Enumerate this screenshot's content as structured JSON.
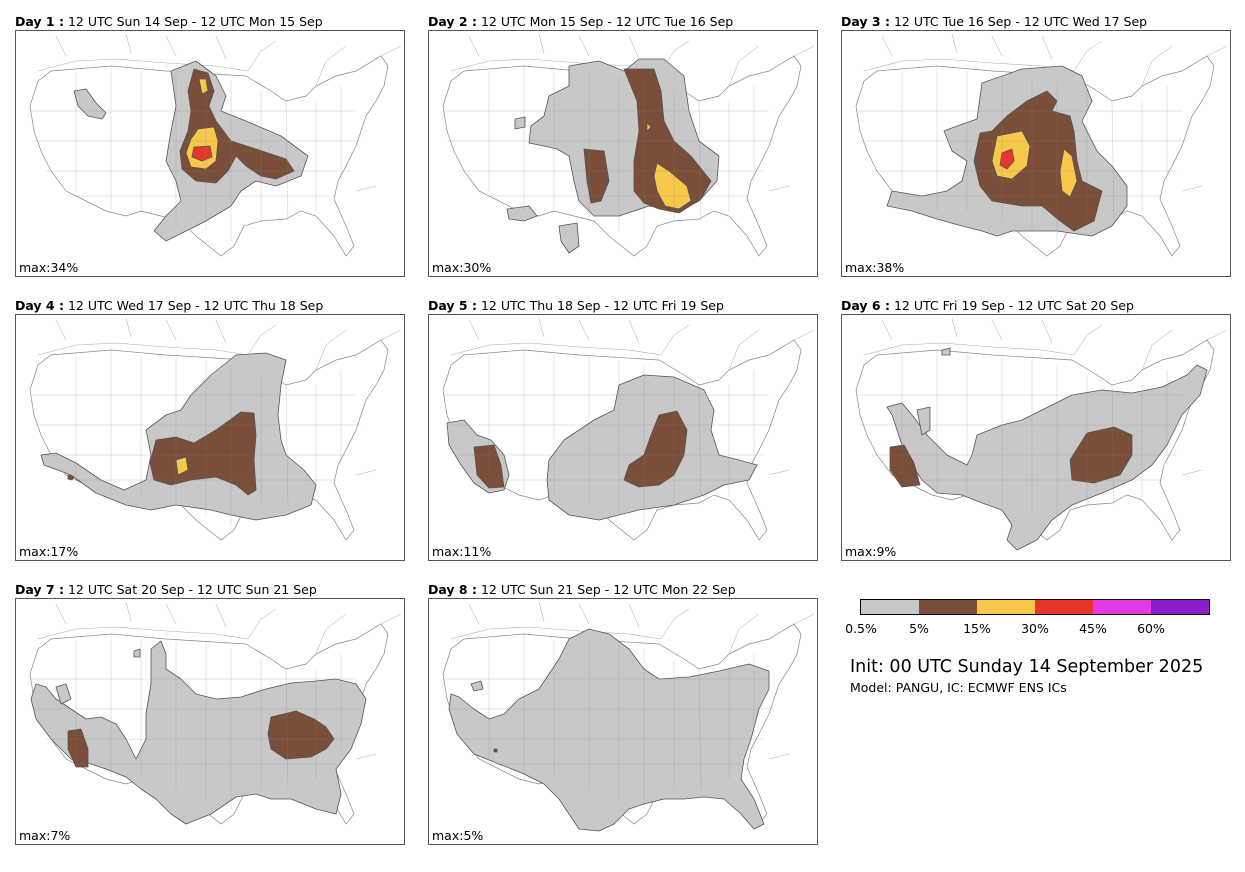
{
  "colors": {
    "level_0_5": "#c8c8c8",
    "level_5": "#7a4e38",
    "level_15": "#f7c84a",
    "level_30": "#e8352a",
    "level_45": "#e43ae6",
    "level_60": "#8a1ec9",
    "state_lines": "#888888",
    "coast_lines": "#aaaaaa"
  },
  "panels": [
    {
      "day_label": "Day 1 :",
      "period": "12 UTC Sun 14 Sep - 12 UTC Mon 15 Sep",
      "max_label": "max:34%",
      "max_value": 34
    },
    {
      "day_label": "Day 2 :",
      "period": "12 UTC Mon 15 Sep - 12 UTC Tue 16 Sep",
      "max_label": "max:30%",
      "max_value": 30
    },
    {
      "day_label": "Day 3 :",
      "period": "12 UTC Tue 16 Sep - 12 UTC Wed 17 Sep",
      "max_label": "max:38%",
      "max_value": 38
    },
    {
      "day_label": "Day 4 :",
      "period": "12 UTC Wed 17 Sep - 12 UTC Thu 18 Sep",
      "max_label": "max:17%",
      "max_value": 17
    },
    {
      "day_label": "Day 5 :",
      "period": "12 UTC Thu 18 Sep - 12 UTC Fri 19 Sep",
      "max_label": "max:11%",
      "max_value": 11
    },
    {
      "day_label": "Day 6 :",
      "period": "12 UTC Fri 19 Sep - 12 UTC Sat 20 Sep",
      "max_label": "max:9%",
      "max_value": 9
    },
    {
      "day_label": "Day 7 :",
      "period": "12 UTC Sat 20 Sep - 12 UTC Sun 21 Sep",
      "max_label": "max:7%",
      "max_value": 7
    },
    {
      "day_label": "Day 8 :",
      "period": "12 UTC Sun 21 Sep - 12 UTC Mon 22 Sep",
      "max_label": "max:5%",
      "max_value": 5
    }
  ],
  "legend": {
    "ticks": [
      "0.5%",
      "5%",
      "15%",
      "30%",
      "45%",
      "60%"
    ]
  },
  "init_text": "Init: 00 UTC Sunday 14 September 2025",
  "model_text": "Model: PANGU, IC: ECMWF ENS ICs"
}
